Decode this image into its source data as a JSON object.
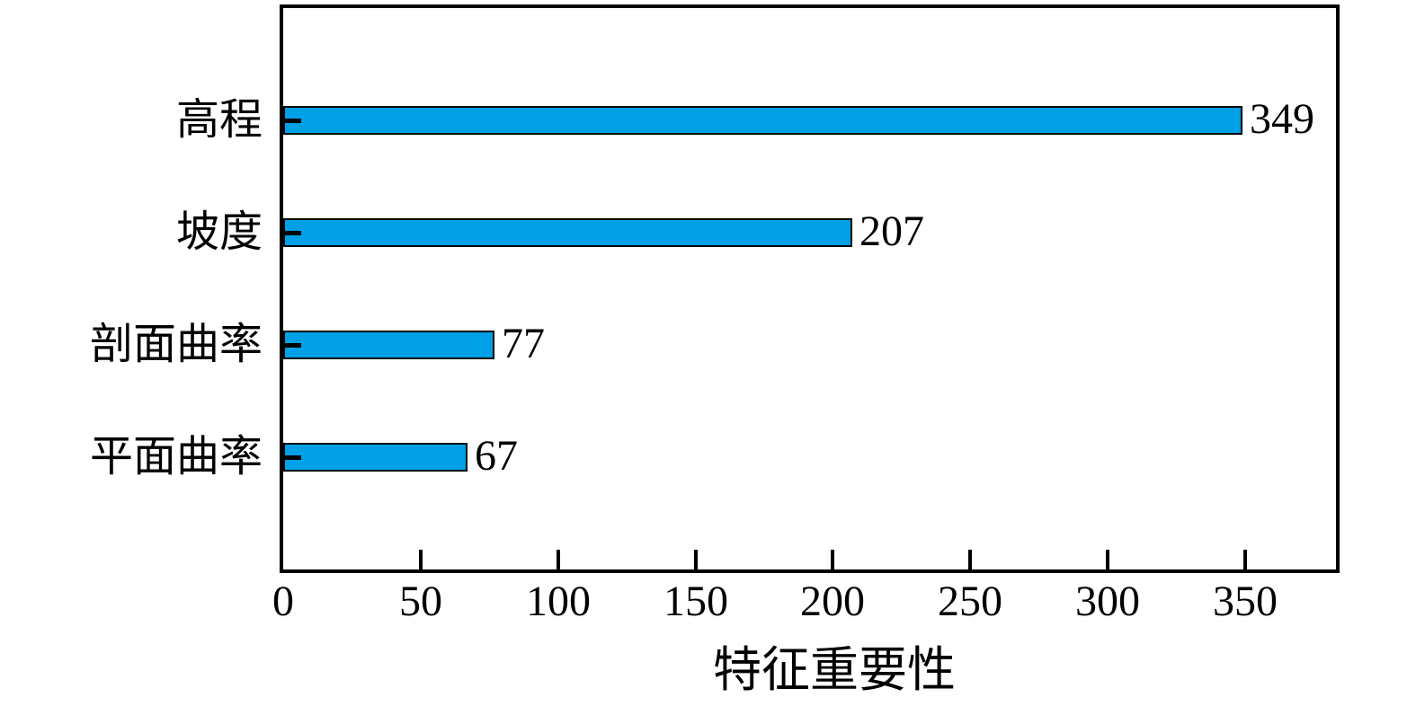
{
  "chart_data": {
    "type": "bar",
    "orientation": "horizontal",
    "categories": [
      "高程",
      "坡度",
      "剖面曲率",
      "平面曲率"
    ],
    "values": [
      349,
      207,
      77,
      67
    ],
    "value_labels": [
      "349",
      "207",
      "77",
      "67"
    ],
    "title": "",
    "xlabel": "特征重要性",
    "ylabel": "",
    "x_ticks": [
      0,
      50,
      100,
      150,
      200,
      250,
      300,
      350
    ],
    "xlim": [
      0,
      383
    ],
    "grid": false,
    "legend": "none",
    "bar_color": "#00A0E6",
    "bar_border_color": "#000000",
    "axis_color": "#000000",
    "text_color": "#000000"
  }
}
